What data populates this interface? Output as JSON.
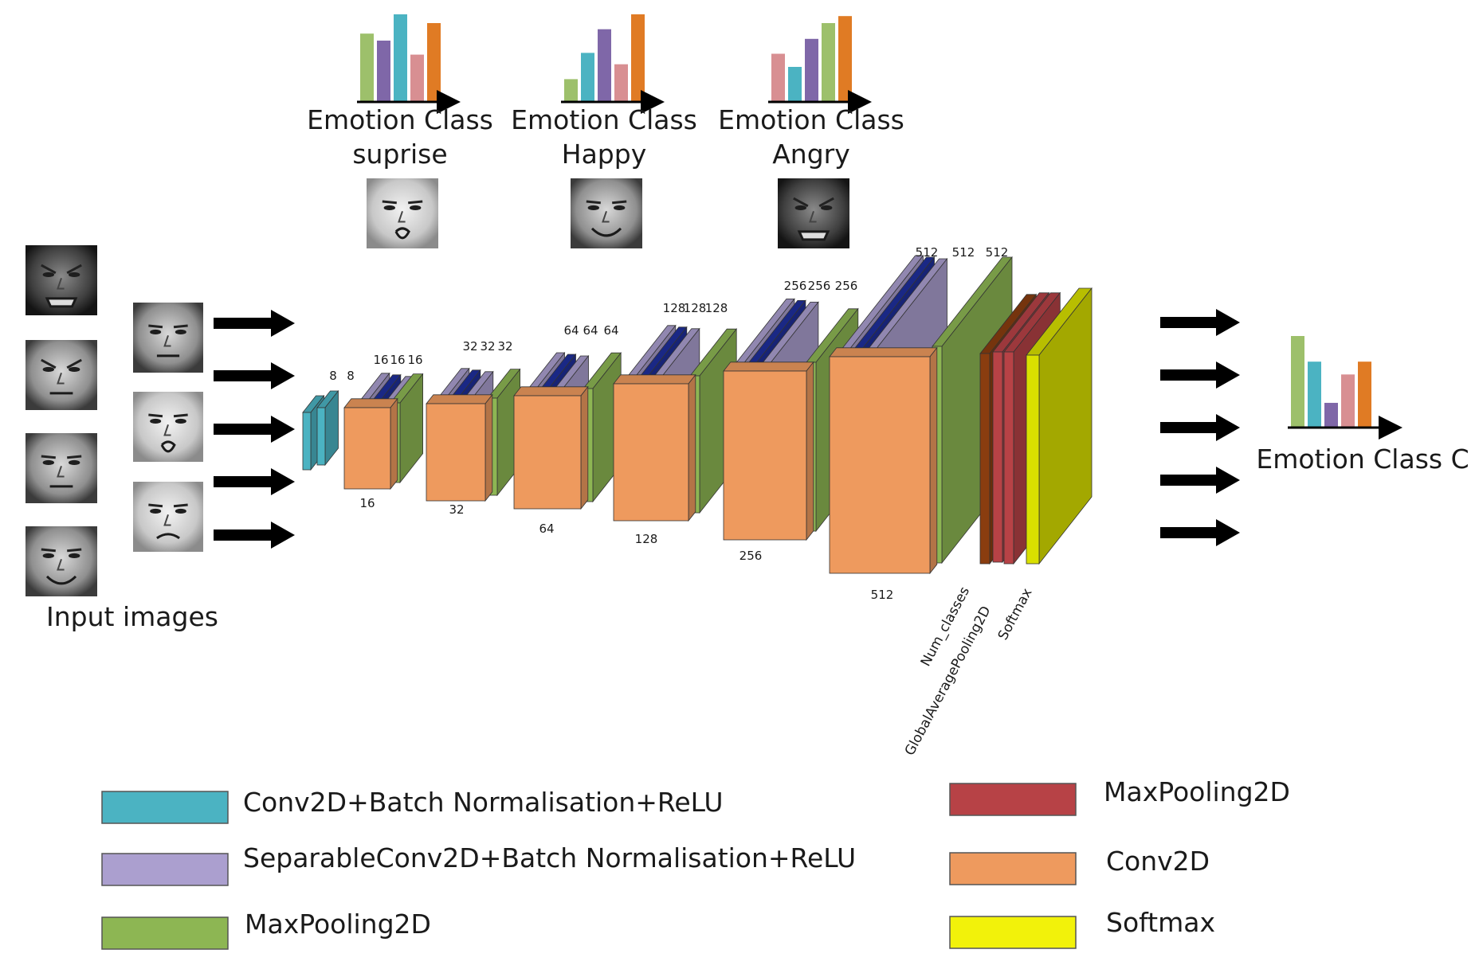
{
  "input_label": "Input images",
  "output_label": "Emotion Class C",
  "emotion_panels": [
    {
      "line1": "Emotion Class",
      "line2": "suprise",
      "bars": [
        0.78,
        0.7,
        1.0,
        0.54,
        0.9
      ],
      "bar_colors": [
        "#9dc06b",
        "#7f67a8",
        "#4bb3c2",
        "#d88f92",
        "#e07b24"
      ],
      "face": "surprised-face"
    },
    {
      "line1": "Emotion Class",
      "line2": "Happy",
      "bars": [
        0.26,
        0.56,
        0.83,
        0.43,
        1.0
      ],
      "bar_colors": [
        "#9dc06b",
        "#4bb3c2",
        "#7f67a8",
        "#d88f92",
        "#e07b24"
      ],
      "face": "happy-face"
    },
    {
      "line1": "Emotion Class",
      "line2": "Angry",
      "bars": [
        0.55,
        0.4,
        0.72,
        0.9,
        0.98
      ],
      "bar_colors": [
        "#d88f92",
        "#4bb3c2",
        "#7f67a8",
        "#9dc06b",
        "#e07b24"
      ],
      "face": "angry-face"
    }
  ],
  "output_bars": [
    1.0,
    0.72,
    0.27,
    0.58,
    0.72
  ],
  "output_bar_colors": [
    "#9dc06b",
    "#4bb3c2",
    "#7f67a8",
    "#d88f92",
    "#e07b24"
  ],
  "layer_labels": {
    "top": [
      "8",
      "8",
      "16",
      "16",
      "16",
      "32",
      "32",
      "32",
      "64",
      "64",
      "64",
      "128",
      "128",
      "128",
      "256",
      "256",
      "256",
      "512",
      "512",
      "512"
    ],
    "bottom": [
      "16",
      "32",
      "64",
      "128",
      "256",
      "512"
    ],
    "rotated": [
      "Num_classes",
      "GlobalAveragePooling2D",
      "Softmax"
    ]
  },
  "legend": [
    {
      "label": "Conv2D+Batch Normalisation+ReLU",
      "color": "#4bb3c2"
    },
    {
      "label": "SeparableConv2D+Batch Normalisation+ReLU",
      "color": "#ab9fcf"
    },
    {
      "label": "MaxPooling2D",
      "color": "#8db653"
    },
    {
      "label": "MaxPooling2D",
      "color": "#b74246"
    },
    {
      "label": "Conv2D",
      "color": "#ee9a5e"
    },
    {
      "label": "Softmax",
      "color": "#f2f20a"
    }
  ],
  "colors": {
    "conv": "#4bb3c2",
    "sepconv": "#ab9fcf",
    "sepconv_dark": "#1f2f9c",
    "maxpool": "#8db653",
    "conv2d": "#ee9a5e",
    "num_classes": "#8a3d0f",
    "gap": "#b74246",
    "softmax": "#d9e000"
  },
  "faces": {
    "left_column": [
      "angry-face",
      "disgust-face",
      "neutral-face",
      "happy-face"
    ],
    "second_column": [
      "neutral-face",
      "surprised-face",
      "sad-face"
    ]
  }
}
